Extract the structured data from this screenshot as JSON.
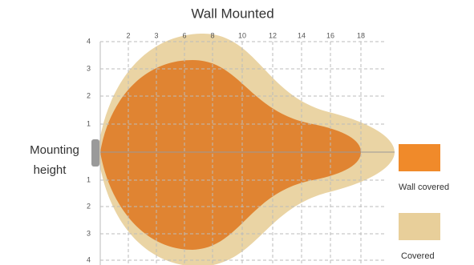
{
  "title": "Wall Mounted",
  "top_labels": [
    "2",
    "3",
    "6",
    "8",
    "10",
    "12",
    "14",
    "16",
    "18"
  ],
  "side_labels": [
    "4",
    "3",
    "2",
    "1",
    "1",
    "2",
    "3",
    "4"
  ],
  "mounting_label": [
    "Mounting",
    "height"
  ],
  "legend": [
    "Wall covered",
    "Covered"
  ]
}
